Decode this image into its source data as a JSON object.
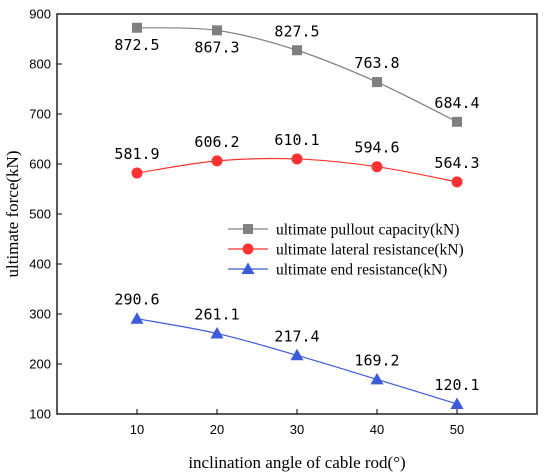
{
  "chart_data": {
    "type": "line",
    "xlabel": "inclination angle of cable rod(°)",
    "ylabel": "ultimate force(kN)",
    "x": [
      10,
      20,
      30,
      40,
      50
    ],
    "xticks": [
      "10",
      "20",
      "30",
      "40",
      "50"
    ],
    "xlim": [
      0,
      60
    ],
    "ylim": [
      100,
      900
    ],
    "yticks": [
      "100",
      "200",
      "300",
      "400",
      "500",
      "600",
      "700",
      "800",
      "900"
    ],
    "grid": false,
    "legend_position": "center-right",
    "series": [
      {
        "name": "ultimate pullout capacity(kN)",
        "marker": "square",
        "color": "#808080",
        "values": [
          872.5,
          867.3,
          827.5,
          763.8,
          684.4
        ],
        "labels": [
          "872.5",
          "867.3",
          "827.5",
          "763.8",
          "684.4"
        ]
      },
      {
        "name": "ultimate lateral resistance(kN)",
        "marker": "circle",
        "color": "#ff3333",
        "values": [
          581.9,
          606.2,
          610.1,
          594.6,
          564.3
        ],
        "labels": [
          "581.9",
          "606.2",
          "610.1",
          "594.6",
          "564.3"
        ]
      },
      {
        "name": "ultimate end resistance(kN)",
        "marker": "triangle",
        "color": "#3b5bdb",
        "values": [
          290.6,
          261.1,
          217.4,
          169.2,
          120.1
        ],
        "labels": [
          "290.6",
          "261.1",
          "217.4",
          "169.2",
          "120.1"
        ]
      }
    ]
  }
}
